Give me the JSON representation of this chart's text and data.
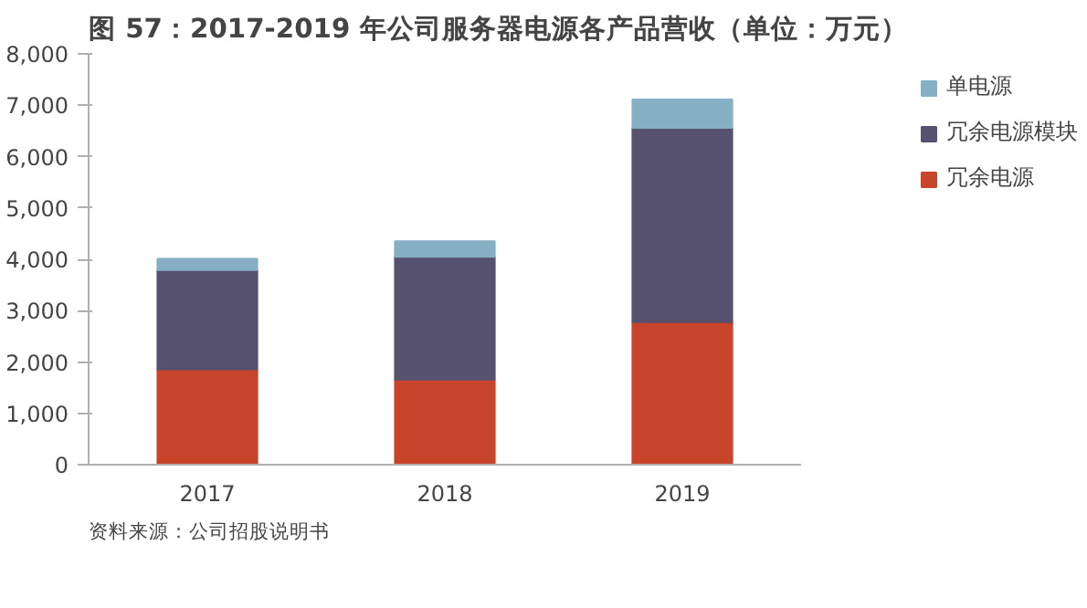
{
  "chart_data": {
    "type": "bar",
    "stacked": true,
    "title": "图 57：2017-2019 年公司服务器电源各产品营收（单位：万元）",
    "categories": [
      "2017",
      "2018",
      "2019"
    ],
    "series": [
      {
        "name": "冗余电源",
        "color": "#c8442a",
        "values": [
          1860,
          1660,
          2780
        ]
      },
      {
        "name": "冗余电源模块",
        "color": "#575170",
        "values": [
          1930,
          2390,
          3780
        ]
      },
      {
        "name": "单电源",
        "color": "#86afc3",
        "values": [
          220,
          300,
          550
        ]
      }
    ],
    "ylim": [
      0,
      8000
    ],
    "yticks": [
      {
        "value": 0,
        "label": "0"
      },
      {
        "value": 1000,
        "label": "1,000"
      },
      {
        "value": 2000,
        "label": "2,000"
      },
      {
        "value": 3000,
        "label": "3,000"
      },
      {
        "value": 4000,
        "label": "4,000"
      },
      {
        "value": 5000,
        "label": "5,000"
      },
      {
        "value": 6000,
        "label": "6,000"
      },
      {
        "value": 7000,
        "label": "7,000"
      },
      {
        "value": 8000,
        "label": "8,000"
      }
    ],
    "grid": false,
    "legend": "right",
    "annotations": [
      "资料来源：公司招股说明书"
    ]
  }
}
